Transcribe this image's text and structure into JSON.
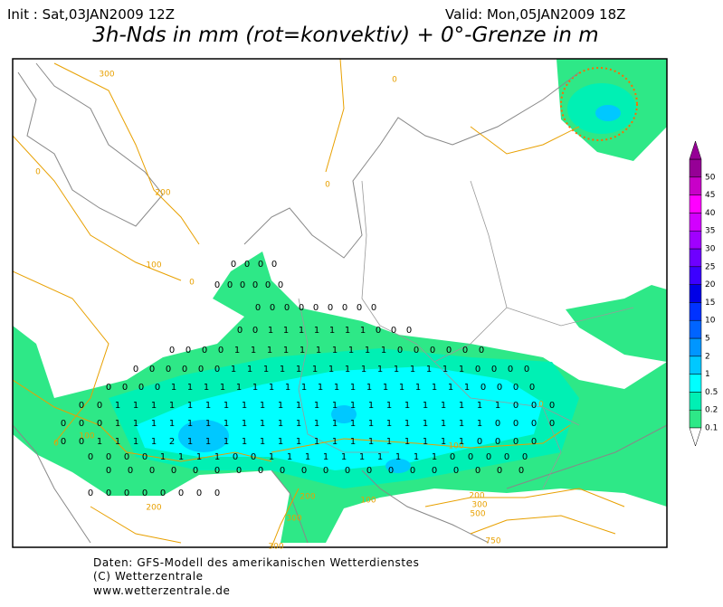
{
  "header": {
    "init": "Init : Sat,03JAN2009 12Z",
    "valid": "Valid: Mon,05JAN2009 18Z"
  },
  "title": "3h-Nds in mm (rot=konvektiv) + 0°-Grenze in m",
  "colorbar": {
    "levels": [
      0.1,
      0.2,
      0.5,
      1,
      2,
      5,
      10,
      15,
      20,
      25,
      30,
      35,
      40,
      45,
      50
    ],
    "colors": [
      "#2ee887",
      "#00f0b4",
      "#00ffff",
      "#00c8ff",
      "#0096ff",
      "#0064ff",
      "#0032ff",
      "#0000e6",
      "#3c00ff",
      "#6e00ff",
      "#a000ff",
      "#d200ff",
      "#ff00ff",
      "#c800c8",
      "#960096"
    ]
  },
  "contour_labels": [
    300,
    200,
    0,
    100,
    0,
    0,
    100,
    0,
    200,
    300,
    100,
    100,
    200,
    300,
    500,
    750,
    300,
    0,
    0,
    200
  ],
  "precip_rows": [
    [
      0,
      0,
      0,
      0
    ],
    [
      0,
      0,
      0,
      0,
      0,
      0
    ],
    [
      0,
      0,
      0,
      0,
      0,
      0,
      0,
      0,
      0
    ],
    [
      0,
      0,
      1,
      1,
      1,
      1,
      1,
      1,
      1,
      0,
      0,
      0
    ],
    [
      0,
      0,
      0,
      0,
      1,
      1,
      1,
      1,
      1,
      1,
      1,
      1,
      1,
      1,
      0,
      0,
      0,
      0,
      0,
      0
    ],
    [
      0,
      0,
      0,
      0,
      0,
      0,
      1,
      1,
      1,
      1,
      1,
      1,
      1,
      1,
      1,
      1,
      1,
      1,
      1,
      1,
      1,
      0,
      0,
      0,
      0
    ],
    [
      0,
      0,
      0,
      0,
      1,
      1,
      1,
      1,
      1,
      1,
      1,
      1,
      1,
      1,
      1,
      1,
      1,
      1,
      1,
      1,
      1,
      1,
      1,
      0,
      0,
      0,
      0
    ],
    [
      0,
      0,
      1,
      1,
      1,
      1,
      1,
      1,
      1,
      1,
      1,
      1,
      1,
      1,
      1,
      1,
      1,
      1,
      1,
      1,
      1,
      1,
      1,
      1,
      0,
      0,
      0
    ],
    [
      0,
      0,
      0,
      1,
      1,
      1,
      1,
      1,
      1,
      1,
      1,
      1,
      1,
      1,
      1,
      1,
      1,
      1,
      1,
      1,
      1,
      1,
      1,
      1,
      0,
      0,
      0,
      0
    ],
    [
      0,
      0,
      1,
      1,
      1,
      1,
      2,
      1,
      1,
      1,
      1,
      1,
      1,
      1,
      1,
      1,
      1,
      1,
      1,
      1,
      1,
      1,
      1,
      0,
      0,
      0,
      0
    ],
    [
      0,
      0,
      0,
      0,
      1,
      1,
      1,
      1,
      0,
      0,
      1,
      1,
      1,
      1,
      1,
      1,
      1,
      1,
      1,
      1,
      0,
      0,
      0,
      0,
      0
    ],
    [
      0,
      0,
      0,
      0,
      0,
      0,
      0,
      0,
      0,
      0,
      0,
      0,
      0,
      0,
      0,
      0,
      0,
      0,
      0,
      0
    ],
    [
      0,
      0,
      0,
      0,
      0,
      0,
      0,
      0
    ]
  ],
  "footer": [
    "Daten: GFS-Modell des amerikanischen Wetterdienstes",
    "(C) Wetterzentrale",
    "www.wetterzentrale.de"
  ]
}
